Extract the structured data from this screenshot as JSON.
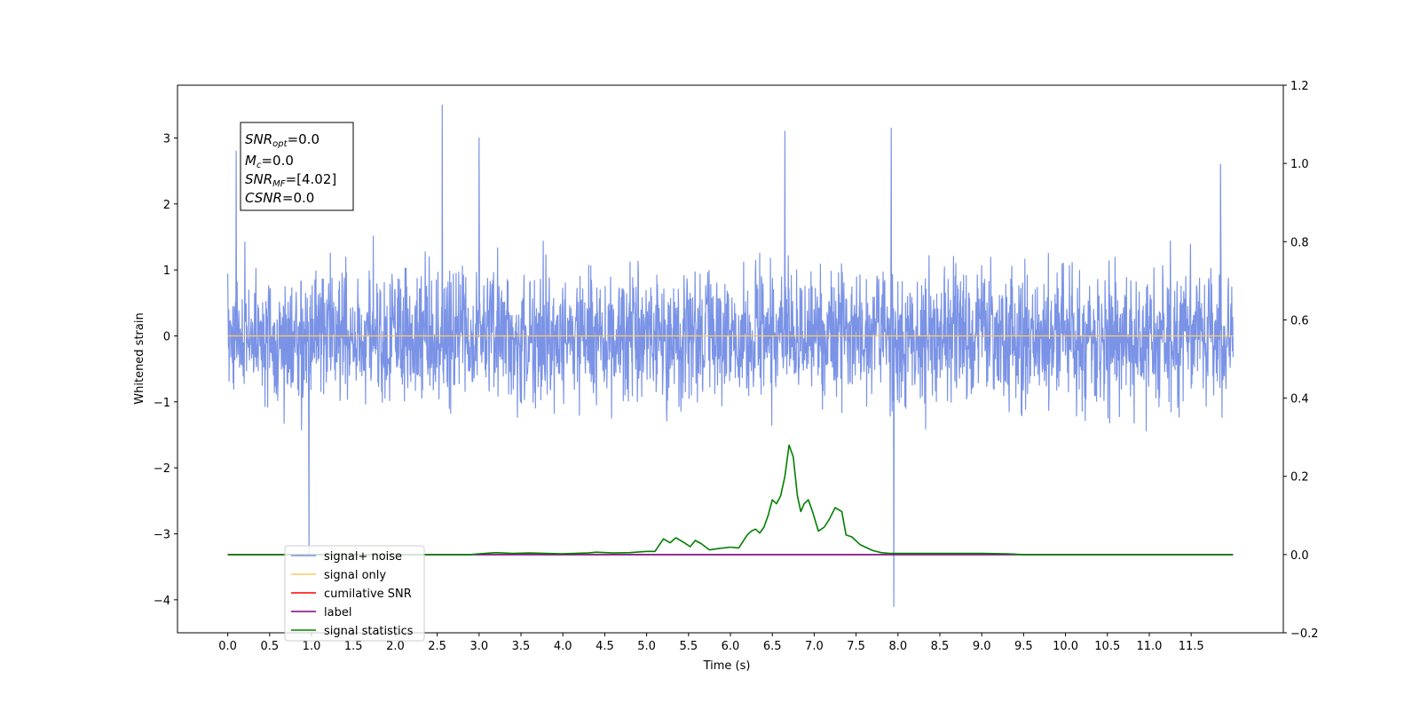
{
  "chart_data": {
    "type": "line",
    "xlabel": "Time (s)",
    "ylabel_left": "Whitened strain",
    "xlim": [
      -0.6,
      12.6
    ],
    "ylim_left": [
      -4.5,
      3.8
    ],
    "ylim_right": [
      -0.2,
      1.2
    ],
    "x_ticks": [
      "0.0",
      "0.5",
      "1.0",
      "1.5",
      "2.0",
      "2.5",
      "3.0",
      "3.5",
      "4.0",
      "4.5",
      "5.0",
      "5.5",
      "6.0",
      "6.5",
      "7.0",
      "7.5",
      "8.0",
      "8.5",
      "9.0",
      "9.5",
      "10.0",
      "10.5",
      "11.0",
      "11.5"
    ],
    "y_ticks_left": [
      "3",
      "2",
      "1",
      "0",
      "−1",
      "−2",
      "−3",
      "−4"
    ],
    "y_ticks_right": [
      "1.2",
      "1.0",
      "0.8",
      "0.6",
      "0.4",
      "0.2",
      "0.0",
      "−0.2"
    ],
    "grid": false,
    "legend_position": "lower-left",
    "legend": [
      {
        "label": "signal+ noise",
        "color": "#7a93e6"
      },
      {
        "label": "signal only",
        "color": "#ffc966"
      },
      {
        "label": "cumilative SNR",
        "color": "#ff0000"
      },
      {
        "label": "label",
        "color": "#800080"
      },
      {
        "label": "signal statistics",
        "color": "#008000"
      }
    ],
    "annotation": {
      "snr_opt": {
        "name": "SNR",
        "sub": "opt",
        "value": "=0.0"
      },
      "mc": {
        "name": "M",
        "sub": "c",
        "value": "=0.0"
      },
      "snr_mf": {
        "name": "SNR",
        "sub": "MF",
        "value": "=[4.02]"
      },
      "csnr": {
        "name": "CSNR",
        "sub": "",
        "value": "=0.0"
      }
    },
    "series": [
      {
        "name": "signal+ noise",
        "axis": "left",
        "color": "#7a93e6",
        "x_range": [
          0.0,
          12.0
        ],
        "envelope": {
          "typical_max": 1.3,
          "typical_min": -1.4
        },
        "notable_points": [
          {
            "x": 2.56,
            "y": 3.5
          },
          {
            "x": 0.97,
            "y": -3.3
          },
          {
            "x": 7.95,
            "y": -4.1
          },
          {
            "x": 7.92,
            "y": 3.15
          },
          {
            "x": 6.65,
            "y": 3.1
          },
          {
            "x": 3.0,
            "y": 3.0
          },
          {
            "x": 0.1,
            "y": 2.8
          },
          {
            "x": 11.85,
            "y": 2.6
          }
        ]
      },
      {
        "name": "signal only",
        "axis": "left",
        "color": "#ffc966",
        "x": [
          0.0,
          12.0
        ],
        "y": [
          0.0,
          0.0
        ]
      },
      {
        "name": "label",
        "axis": "right",
        "color": "#800080",
        "x": [
          0.0,
          12.0
        ],
        "y": [
          0.0,
          0.0
        ]
      },
      {
        "name": "signal statistics",
        "axis": "right",
        "color": "#008000",
        "x": [
          0.0,
          2.9,
          3.0,
          3.2,
          3.4,
          3.6,
          4.0,
          4.3,
          4.4,
          4.6,
          4.8,
          5.0,
          5.1,
          5.2,
          5.28,
          5.35,
          5.45,
          5.52,
          5.58,
          5.65,
          5.75,
          5.85,
          6.0,
          6.1,
          6.2,
          6.25,
          6.3,
          6.35,
          6.4,
          6.45,
          6.5,
          6.55,
          6.6,
          6.65,
          6.7,
          6.75,
          6.8,
          6.84,
          6.88,
          6.93,
          6.98,
          7.05,
          7.12,
          7.18,
          7.25,
          7.33,
          7.38,
          7.45,
          7.5,
          7.55,
          7.6,
          7.7,
          7.8,
          7.9,
          8.0,
          8.5,
          9.0,
          9.3,
          9.5,
          12.0
        ],
        "y": [
          0.0,
          0.0,
          0.002,
          0.005,
          0.003,
          0.004,
          0.002,
          0.004,
          0.006,
          0.004,
          0.005,
          0.008,
          0.008,
          0.04,
          0.03,
          0.043,
          0.03,
          0.02,
          0.036,
          0.028,
          0.012,
          0.015,
          0.019,
          0.017,
          0.05,
          0.06,
          0.065,
          0.055,
          0.07,
          0.1,
          0.14,
          0.13,
          0.15,
          0.2,
          0.28,
          0.25,
          0.15,
          0.11,
          0.13,
          0.14,
          0.11,
          0.06,
          0.07,
          0.09,
          0.12,
          0.11,
          0.05,
          0.045,
          0.035,
          0.025,
          0.02,
          0.01,
          0.005,
          0.003,
          0.003,
          0.003,
          0.003,
          0.002,
          0.0,
          0.0
        ]
      }
    ]
  }
}
